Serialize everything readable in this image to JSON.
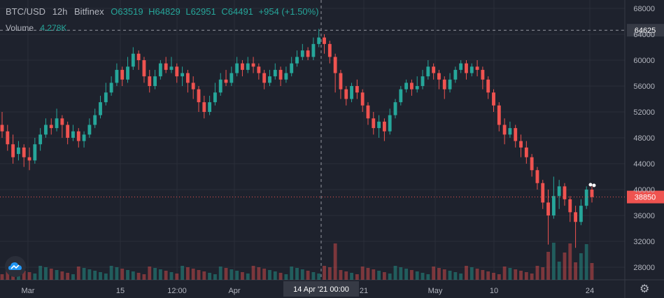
{
  "legend": {
    "symbol": "BTC/USD",
    "interval": "12h",
    "exchange": "Bitfinex",
    "open": "O63519",
    "high": "H64829",
    "low": "L62951",
    "close": "C64491",
    "change": "+954 (+1.50%)"
  },
  "volume_legend": {
    "label": "Volume",
    "value": "4.278K"
  },
  "colors": {
    "up": "#26a69a",
    "down": "#ef5350",
    "background": "#1e222d",
    "price_tag": "#ef5350",
    "crosshair_tag": "#363a45"
  },
  "icons": {
    "logo": "tradingview-cloud-icon",
    "settings": "gear-icon"
  },
  "chart_data": {
    "type": "candlestick",
    "y_axis_ticks": [
      28000,
      32000,
      36000,
      40000,
      44000,
      48000,
      52000,
      56000,
      60000,
      64000,
      68000
    ],
    "ylim": [
      26000,
      69000
    ],
    "x_axis_labels": [
      "Mar",
      "15",
      "12:00",
      "Apr",
      "21",
      "May",
      "10",
      "24"
    ],
    "crosshair": {
      "price_label": "64625",
      "time_label": "14 Apr '21  00:00"
    },
    "last_price_label": "38850",
    "grid": true,
    "candles": [
      [
        50000,
        49000,
        52000,
        48000
      ],
      [
        49000,
        47000,
        50000,
        46000
      ],
      [
        47000,
        45000,
        48500,
        44000
      ],
      [
        45500,
        46500,
        47500,
        44500
      ],
      [
        46500,
        45000,
        47000,
        43500
      ],
      [
        45000,
        44500,
        46500,
        43000
      ],
      [
        44500,
        47000,
        48000,
        44000
      ],
      [
        47000,
        48500,
        49500,
        46000
      ],
      [
        48500,
        50000,
        51000,
        48000
      ],
      [
        50000,
        49500,
        51000,
        48500
      ],
      [
        49500,
        51000,
        52500,
        49000
      ],
      [
        51000,
        50000,
        51500,
        48000
      ],
      [
        50000,
        48000,
        50500,
        47000
      ],
      [
        48000,
        49000,
        50000,
        47500
      ],
      [
        49000,
        47500,
        49500,
        46500
      ],
      [
        47500,
        48500,
        49000,
        46500
      ],
      [
        48500,
        50000,
        51000,
        48000
      ],
      [
        50000,
        51500,
        52500,
        49500
      ],
      [
        51500,
        53500,
        54500,
        51000
      ],
      [
        53500,
        55000,
        56500,
        53000
      ],
      [
        55000,
        56500,
        57500,
        54500
      ],
      [
        56500,
        58500,
        59500,
        56000
      ],
      [
        58500,
        57000,
        59000,
        56000
      ],
      [
        57000,
        59000,
        60500,
        56500
      ],
      [
        59000,
        61000,
        62000,
        58500
      ],
      [
        61000,
        60000,
        61500,
        58500
      ],
      [
        60000,
        57500,
        60500,
        56500
      ],
      [
        57500,
        56000,
        58500,
        55000
      ],
      [
        56000,
        57500,
        58500,
        55500
      ],
      [
        57500,
        59500,
        60000,
        57000
      ],
      [
        59500,
        58500,
        60500,
        58000
      ],
      [
        58500,
        59000,
        60500,
        58000
      ],
      [
        59000,
        57500,
        59500,
        56500
      ],
      [
        57500,
        58000,
        59000,
        56000
      ],
      [
        58000,
        56500,
        58500,
        55000
      ],
      [
        56500,
        55500,
        57500,
        54000
      ],
      [
        55500,
        53500,
        56000,
        52000
      ],
      [
        53500,
        52000,
        54500,
        51000
      ],
      [
        52000,
        53500,
        54500,
        51500
      ],
      [
        53500,
        55000,
        56500,
        53000
      ],
      [
        55000,
        57000,
        58000,
        54500
      ],
      [
        57000,
        56500,
        58500,
        56000
      ],
      [
        56500,
        58000,
        59000,
        56000
      ],
      [
        58000,
        59500,
        60500,
        57500
      ],
      [
        59500,
        58500,
        60000,
        57500
      ],
      [
        58500,
        59500,
        60500,
        58000
      ],
      [
        59500,
        59000,
        60500,
        58000
      ],
      [
        59000,
        58000,
        59500,
        57000
      ],
      [
        58000,
        56500,
        58500,
        55500
      ],
      [
        56500,
        57500,
        58500,
        56000
      ],
      [
        57500,
        58500,
        59500,
        57000
      ],
      [
        58500,
        57000,
        59000,
        56000
      ],
      [
        57000,
        58000,
        59000,
        56500
      ],
      [
        58000,
        59500,
        60500,
        57500
      ],
      [
        59500,
        60500,
        61500,
        59000
      ],
      [
        60500,
        61500,
        62500,
        60000
      ],
      [
        61500,
        60500,
        62000,
        60000
      ],
      [
        60500,
        62500,
        63500,
        60000
      ],
      [
        62500,
        63500,
        64829,
        62000
      ],
      [
        63500,
        62500,
        64000,
        61000
      ],
      [
        62500,
        60500,
        63000,
        59500
      ],
      [
        60500,
        58000,
        61000,
        55000
      ],
      [
        58000,
        55500,
        58500,
        54000
      ],
      [
        55500,
        54000,
        56000,
        53000
      ],
      [
        54000,
        56000,
        56500,
        53500
      ],
      [
        56000,
        55000,
        57000,
        54000
      ],
      [
        55000,
        53000,
        55500,
        52000
      ],
      [
        53000,
        51000,
        53500,
        50000
      ],
      [
        51000,
        49500,
        52000,
        48500
      ],
      [
        49500,
        50500,
        51500,
        48000
      ],
      [
        50500,
        49000,
        51000,
        47500
      ],
      [
        49000,
        51500,
        52500,
        48500
      ],
      [
        51500,
        53500,
        54000,
        51000
      ],
      [
        53500,
        55500,
        56000,
        53000
      ],
      [
        55500,
        56500,
        57000,
        55000
      ],
      [
        56500,
        55500,
        57000,
        54500
      ],
      [
        55500,
        56000,
        57500,
        55000
      ],
      [
        56000,
        57500,
        58500,
        55500
      ],
      [
        57500,
        59000,
        60000,
        57000
      ],
      [
        59000,
        58000,
        59500,
        57000
      ],
      [
        58000,
        57000,
        58500,
        55500
      ],
      [
        57000,
        55500,
        57500,
        54000
      ],
      [
        55500,
        57000,
        58000,
        55000
      ],
      [
        57000,
        58500,
        59000,
        56500
      ],
      [
        58500,
        59500,
        60000,
        58000
      ],
      [
        59500,
        58000,
        60000,
        57000
      ],
      [
        58000,
        59000,
        59500,
        57500
      ],
      [
        59000,
        58500,
        60000,
        57500
      ],
      [
        58500,
        57000,
        59000,
        55500
      ],
      [
        57000,
        55000,
        57500,
        54000
      ],
      [
        55000,
        53000,
        55500,
        52000
      ],
      [
        53000,
        50000,
        53500,
        49000
      ],
      [
        50000,
        48500,
        51000,
        47000
      ],
      [
        48500,
        49500,
        50500,
        48000
      ],
      [
        49500,
        47500,
        50000,
        46500
      ],
      [
        47500,
        46500,
        48500,
        45000
      ],
      [
        46500,
        45000,
        47500,
        44000
      ],
      [
        45000,
        43000,
        45500,
        42000
      ],
      [
        43000,
        41000,
        43500,
        40000
      ],
      [
        41000,
        38000,
        41500,
        37000
      ],
      [
        38000,
        36000,
        40000,
        31500
      ],
      [
        36000,
        39000,
        42000,
        35500
      ],
      [
        39000,
        40500,
        41500,
        37000
      ],
      [
        40500,
        38500,
        41000,
        37500
      ],
      [
        38500,
        36500,
        39000,
        35000
      ],
      [
        36500,
        35000,
        37500,
        31000
      ],
      [
        35000,
        37500,
        38500,
        34500
      ],
      [
        37500,
        40000,
        40500,
        37000
      ],
      [
        40000,
        38850,
        40500,
        38000
      ]
    ],
    "volume_note": "volume histogram drawn beneath candles"
  }
}
